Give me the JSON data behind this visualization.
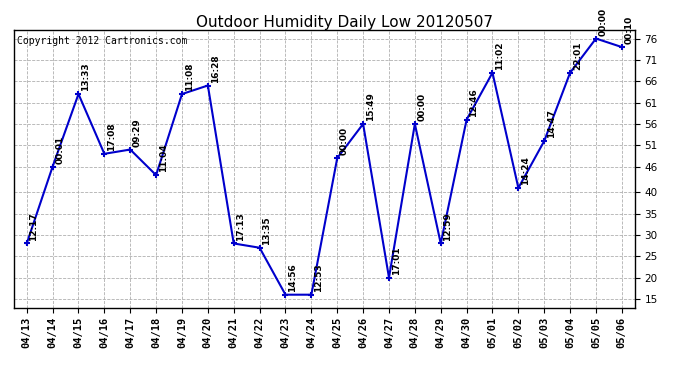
{
  "title": "Outdoor Humidity Daily Low 20120507",
  "copyright": "Copyright 2012 Cartronics.com",
  "dates": [
    "04/13",
    "04/14",
    "04/15",
    "04/16",
    "04/17",
    "04/18",
    "04/19",
    "04/20",
    "04/21",
    "04/22",
    "04/23",
    "04/24",
    "04/25",
    "04/26",
    "04/27",
    "04/28",
    "04/29",
    "04/30",
    "05/01",
    "05/02",
    "05/03",
    "05/04",
    "05/05",
    "05/06"
  ],
  "values": [
    28,
    46,
    63,
    49,
    50,
    44,
    63,
    65,
    28,
    27,
    16,
    16,
    48,
    56,
    20,
    56,
    28,
    57,
    68,
    41,
    52,
    68,
    76,
    74
  ],
  "labels": [
    "12:17",
    "00:01",
    "13:33",
    "17:08",
    "09:29",
    "11:04",
    "11:08",
    "16:28",
    "17:13",
    "13:35",
    "14:56",
    "12:53",
    "00:00",
    "15:49",
    "17:01",
    "00:00",
    "12:59",
    "12:46",
    "11:02",
    "14:24",
    "14:47",
    "22:01",
    "00:00",
    "00:10"
  ],
  "line_color": "#0000cc",
  "marker_color": "#0000cc",
  "background_color": "#ffffff",
  "plot_bg_color": "#ffffff",
  "grid_color": "#b0b0b0",
  "yticks": [
    15,
    20,
    25,
    30,
    35,
    40,
    46,
    51,
    56,
    61,
    66,
    71,
    76
  ],
  "ylim": [
    13,
    78
  ],
  "title_fontsize": 11,
  "label_fontsize": 6.5,
  "tick_fontsize": 7.5,
  "copyright_fontsize": 7
}
